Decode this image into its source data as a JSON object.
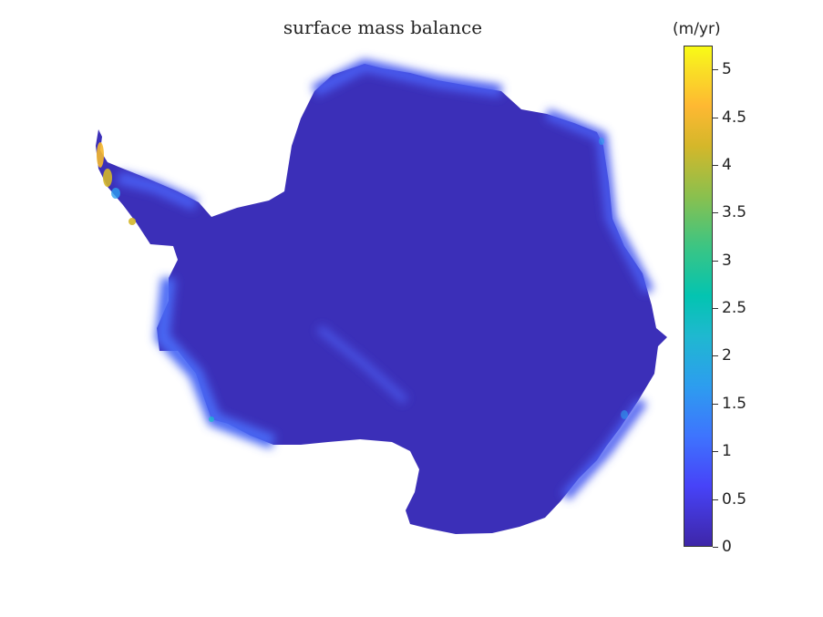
{
  "title": "surface mass balance",
  "colorbar": {
    "unit_label": "(m/yr)",
    "min": 0,
    "max": 5.25,
    "ticks": [
      "0",
      "0.5",
      "1",
      "1.5",
      "2",
      "2.5",
      "3",
      "3.5",
      "4",
      "4.5",
      "5"
    ],
    "colormap": "parula"
  },
  "map": {
    "region": "Antarctica",
    "land_color": "#3b2fb8",
    "coast_highlight_color": "#4a5cf0",
    "peninsula_peak_color": "#f5b82e"
  }
}
